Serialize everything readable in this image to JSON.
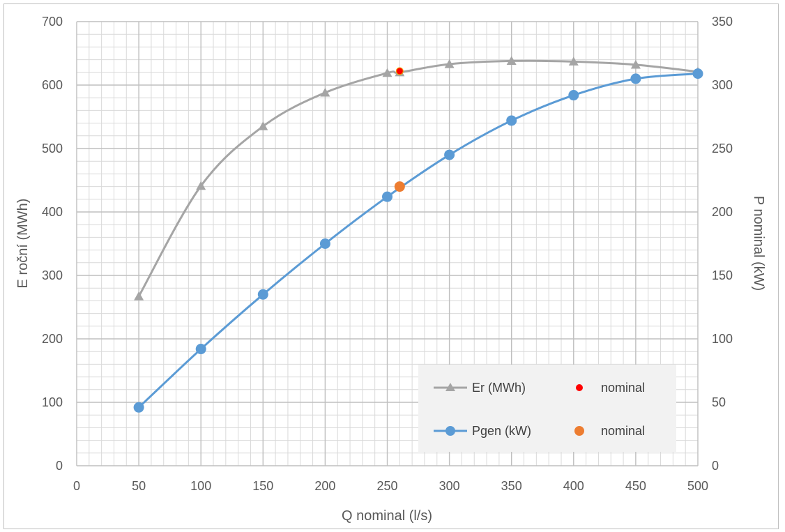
{
  "chart_data": {
    "type": "line",
    "xlabel": "Q nominal (l/s)",
    "ylabel_left": "E roční (MWh)",
    "ylabel_right": "P nominal (kW)",
    "xlim": [
      0,
      500
    ],
    "ylim_left": [
      0,
      700
    ],
    "ylim_right": [
      0,
      350
    ],
    "x_ticks": [
      0,
      50,
      100,
      150,
      200,
      250,
      300,
      350,
      400,
      450,
      500
    ],
    "y_left_ticks": [
      0,
      100,
      200,
      300,
      400,
      500,
      600,
      700
    ],
    "y_right_ticks": [
      0,
      50,
      100,
      150,
      200,
      250,
      300,
      350
    ],
    "grid": true,
    "legend_position": "bottom-right",
    "series": [
      {
        "name": "Er (MWh)",
        "axis": "left",
        "marker": "triangle",
        "color": "#a5a5a5",
        "x": [
          50,
          100,
          150,
          200,
          250,
          260,
          300,
          350,
          400,
          450,
          500
        ],
        "y": [
          267,
          441,
          535,
          588,
          619,
          620,
          633,
          638,
          637,
          632,
          621
        ]
      },
      {
        "name": "nominal",
        "axis": "left",
        "marker": "dot",
        "color": "#ff0000",
        "x": [
          260
        ],
        "y": [
          622
        ]
      },
      {
        "name": "Pgen (kW)",
        "axis": "right",
        "marker": "circle",
        "color": "#5b9bd5",
        "x": [
          50,
          100,
          150,
          200,
          250,
          300,
          350,
          400,
          450,
          500
        ],
        "y": [
          46,
          92,
          135,
          175,
          212,
          245,
          272,
          292,
          305,
          309
        ]
      },
      {
        "name": "nominal",
        "axis": "right",
        "marker": "circle",
        "color": "#ed7d31",
        "x": [
          260
        ],
        "y": [
          220
        ]
      }
    ]
  }
}
